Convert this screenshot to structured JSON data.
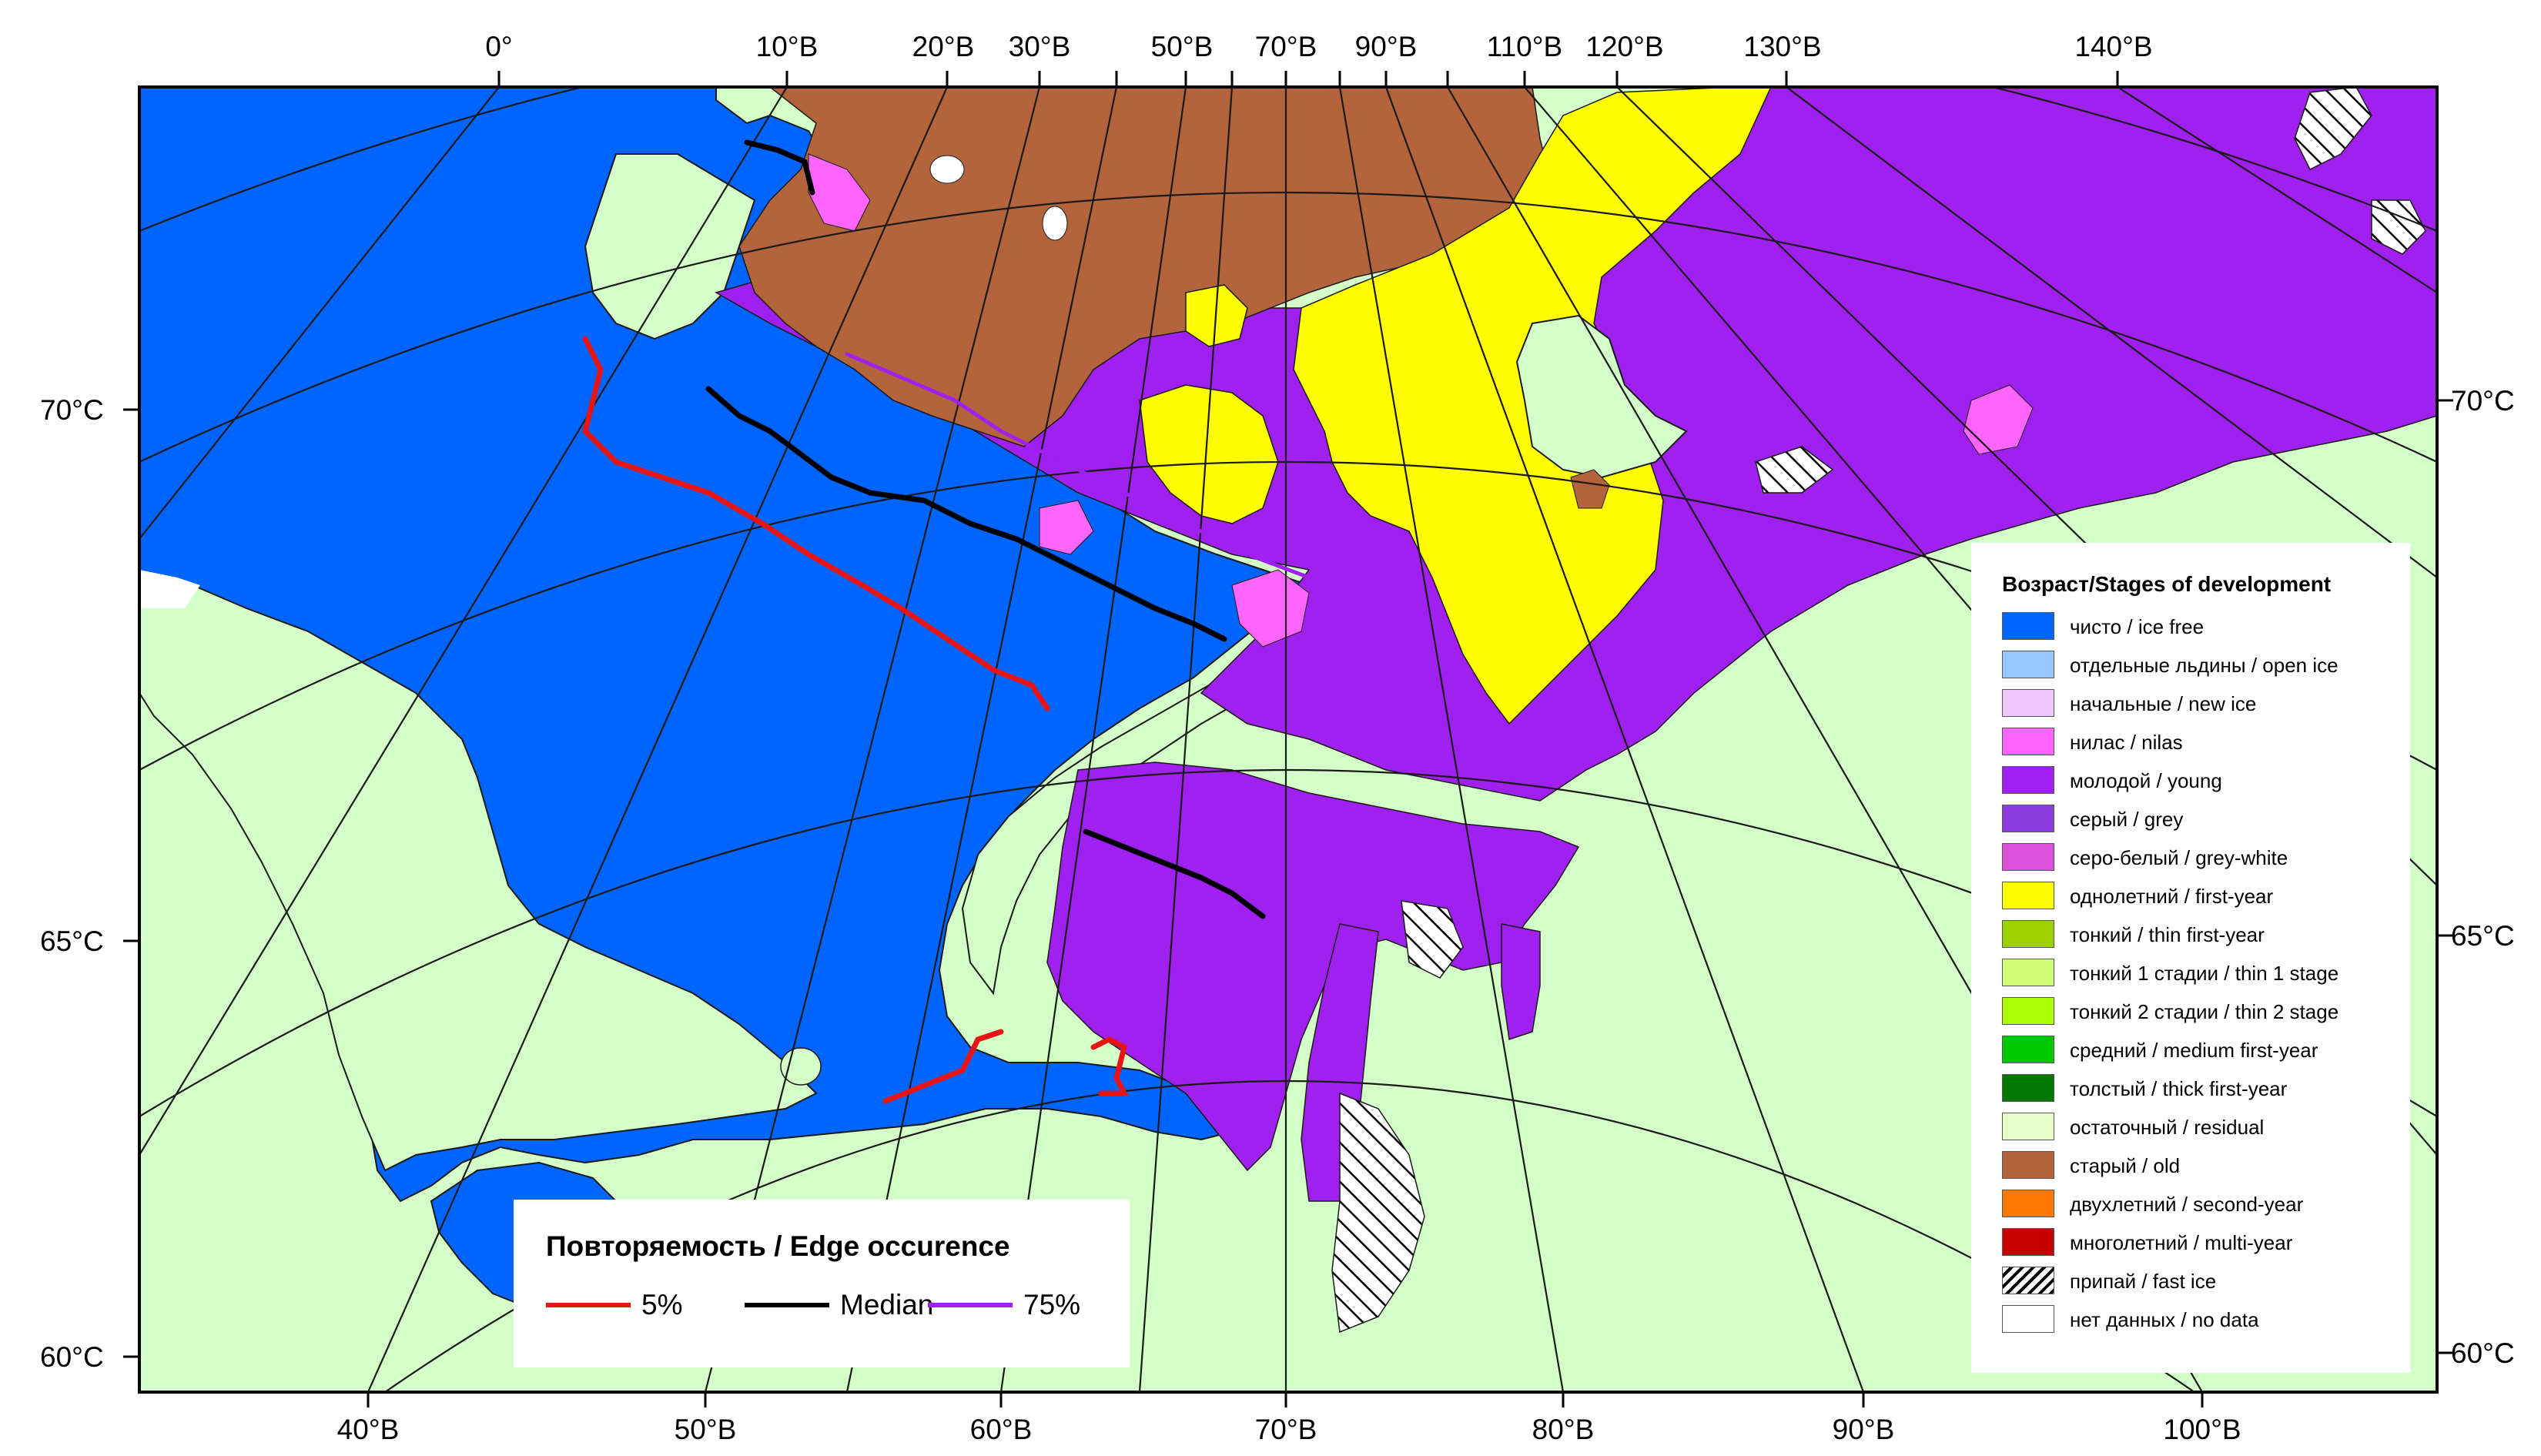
{
  "top_lon_labels": [
    "0°",
    "10°В",
    "20°В",
    "30°В",
    "50°В",
    "70°В",
    "90°В",
    "110°В",
    "120°В",
    "130°В",
    "140°В"
  ],
  "bottom_lon_labels": [
    "40°В",
    "50°В",
    "60°В",
    "70°В",
    "80°В",
    "90°В",
    "100°В"
  ],
  "left_lat_labels": [
    "70°С",
    "65°С",
    "60°С"
  ],
  "right_lat_labels": [
    "70°С",
    "65°С",
    "60°С"
  ],
  "colors": {
    "ice_free": "#0064FF",
    "land": "#D4FFC8",
    "young": "#A020F0",
    "nilas": "#FF64FF",
    "first_year": "#FFFF00",
    "old": "#B4643C",
    "median_line": "#000000",
    "edge_5": "#E61414",
    "edge_75": "#A020F0"
  },
  "legend": {
    "title": "Возраст/Stages of development",
    "items": [
      {
        "label": "чисто / ice free",
        "color": "#0064FF",
        "pattern": false
      },
      {
        "label": "отдельные льдины / open ice",
        "color": "#96C8FF",
        "pattern": false
      },
      {
        "label": "начальные / new ice",
        "color": "#F0C8FF",
        "pattern": false
      },
      {
        "label": "нилас / nilas",
        "color": "#FF64FF",
        "pattern": false
      },
      {
        "label": "молодой / young",
        "color": "#A020F0",
        "pattern": false
      },
      {
        "label": "серый / grey",
        "color": "#8C3CDC",
        "pattern": false
      },
      {
        "label": "серо-белый / grey-white",
        "color": "#DC50DC",
        "pattern": false
      },
      {
        "label": "однолетний / first-year",
        "color": "#FFFF00",
        "pattern": false
      },
      {
        "label": "тонкий / thin first-year",
        "color": "#9BD200",
        "pattern": false
      },
      {
        "label": "тонкий 1 стадии / thin 1 stage",
        "color": "#D2FF78",
        "pattern": false
      },
      {
        "label": "тонкий 2 стадии / thin 2 stage",
        "color": "#AAFF00",
        "pattern": false
      },
      {
        "label": "средний / medium first-year",
        "color": "#00C800",
        "pattern": false
      },
      {
        "label": "толстый / thick first-year",
        "color": "#007800",
        "pattern": false
      },
      {
        "label": "остаточный / residual",
        "color": "#E6FFC8",
        "pattern": false
      },
      {
        "label": "старый / old",
        "color": "#B4643C",
        "pattern": false
      },
      {
        "label": "двухлетний / second-year",
        "color": "#FF7800",
        "pattern": false
      },
      {
        "label": "многолетний / multi-year",
        "color": "#C80000",
        "pattern": false
      },
      {
        "label": "припай / fast ice",
        "color": "#FFFFFF",
        "pattern": true
      },
      {
        "label": "нет данных / no data",
        "color": "#FFFFFF",
        "pattern": false
      }
    ]
  },
  "edge_legend": {
    "title": "Повторяемость / Edge occurence",
    "items": [
      {
        "label": "5%",
        "color": "#E61414"
      },
      {
        "label": "Median",
        "color": "#000000"
      },
      {
        "label": "75%",
        "color": "#A020F0"
      }
    ]
  }
}
